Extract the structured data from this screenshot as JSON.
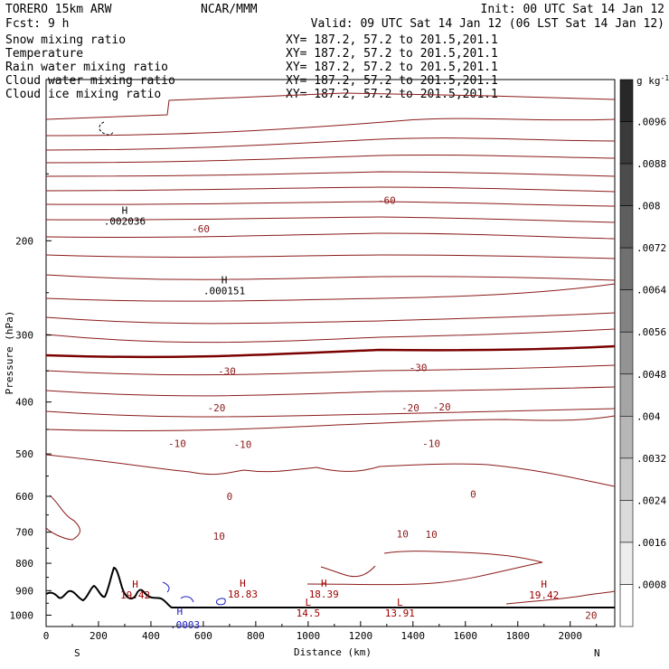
{
  "header": {
    "model": "TORERO  15km ARW",
    "org": "NCAR/MMM",
    "init": "Init: 00 UTC Sat 14 Jan 12",
    "fcst": "Fcst:    9 h",
    "valid": "Valid: 09 UTC Sat 14 Jan 12 (06 LST Sat 14 Jan 12)"
  },
  "legend": [
    {
      "label": "Snow mixing ratio",
      "xy": "XY= 187.2, 57.2 to 201.5,201.1",
      "color": "#000000",
      "xy_color": "#000000"
    },
    {
      "label": "Temperature",
      "xy": "XY= 187.2, 57.2 to 201.5,201.1",
      "color": "#a00000",
      "xy_color": "#a00000"
    },
    {
      "label": "Rain water mixing ratio",
      "xy": "XY= 187.2, 57.2 to 201.5,201.1",
      "color": "#c00000",
      "xy_color": "#c00000"
    },
    {
      "label": "Cloud water mixing ratio",
      "xy": "XY= 187.2, 57.2 to 201.5,201.1",
      "color": "#2020c0",
      "xy_color": "#2020c0"
    },
    {
      "label": "Cloud ice mixing ratio",
      "xy": "XY= 187.2, 57.2 to 201.5,201.1",
      "color": "#000000",
      "xy_color": "#000000"
    }
  ],
  "chart_data": {
    "type": "cross-section contour",
    "xlabel": "Distance (km)",
    "ylabel": "Pressure (hPa)",
    "xlim": [
      0,
      2170
    ],
    "ylim": [
      1050,
      100
    ],
    "x_ticks": [
      0,
      200,
      400,
      600,
      800,
      1000,
      1200,
      1400,
      1600,
      1800,
      2000
    ],
    "y_ticks": [
      200,
      300,
      400,
      500,
      600,
      700,
      800,
      900,
      1000
    ],
    "x_end_labels": {
      "left": "S",
      "right": "N"
    },
    "colorbar": {
      "unit": "g kg",
      "unit_exp": "-1",
      "labels": [
        ".0096",
        ".0088",
        ".008",
        ".0072",
        ".0064",
        ".0056",
        ".0048",
        ".004",
        ".0032",
        ".0024",
        ".0016",
        ".0008"
      ]
    },
    "temperature_labels": [
      {
        "text": "-60",
        "x": 1300,
        "p": 168
      },
      {
        "text": "-60",
        "x": 590,
        "p": 190
      },
      {
        "text": "-30",
        "x": 690,
        "p": 350
      },
      {
        "text": "-30",
        "x": 1420,
        "p": 345
      },
      {
        "text": "-20",
        "x": 650,
        "p": 410
      },
      {
        "text": "-20",
        "x": 1390,
        "p": 410
      },
      {
        "text": "-20",
        "x": 1510,
        "p": 408
      },
      {
        "text": "-10",
        "x": 500,
        "p": 478
      },
      {
        "text": "-10",
        "x": 750,
        "p": 480
      },
      {
        "text": "-10",
        "x": 1470,
        "p": 478
      },
      {
        "text": "0",
        "x": 700,
        "p": 600
      },
      {
        "text": "0",
        "x": 1630,
        "p": 594
      },
      {
        "text": "10",
        "x": 660,
        "p": 712
      },
      {
        "text": "10",
        "x": 1360,
        "p": 705
      },
      {
        "text": "10",
        "x": 1470,
        "p": 707
      },
      {
        "text": "20",
        "x": 2080,
        "p": 1000
      }
    ],
    "extrema": [
      {
        "kind": "H",
        "value": "19.42",
        "x": 340,
        "p": 888,
        "color": "#a00000"
      },
      {
        "kind": "H",
        "value": "18.83",
        "x": 750,
        "p": 885,
        "color": "#a00000"
      },
      {
        "kind": "H",
        "value": "18.39",
        "x": 1060,
        "p": 885,
        "color": "#a00000"
      },
      {
        "kind": "H",
        "value": "19.42",
        "x": 1900,
        "p": 888,
        "color": "#a00000"
      },
      {
        "kind": "L",
        "value": "14.5",
        "x": 1000,
        "p": 960,
        "color": "#a00000"
      },
      {
        "kind": "L",
        "value": "13.91",
        "x": 1350,
        "p": 960,
        "color": "#a00000"
      },
      {
        "kind": "H",
        "value": ".002036",
        "x": 300,
        "p": 178,
        "color": "#000000"
      },
      {
        "kind": "H",
        "value": ".000151",
        "x": 680,
        "p": 240,
        "color": "#000000"
      },
      {
        "kind": "H",
        "value": "",
        "x": 510,
        "p": 998,
        "color": "#2020c0"
      },
      {
        "kind": "",
        "value": ".0003",
        "x": 530,
        "p": 1010,
        "color": "#2020c0"
      }
    ]
  }
}
